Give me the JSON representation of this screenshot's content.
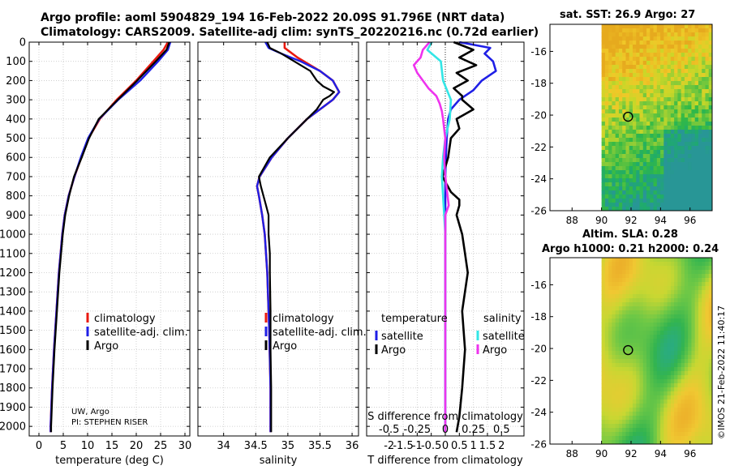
{
  "header": {
    "line1": "Argo profile: aoml 5904829_194 16-Feb-2022 20.09S 91.796E (NRT data)",
    "line2": "Climatology: CARS2009. Satellite-adj clim: synTS_20220216.nc (0.72d earlier)"
  },
  "map_sst": {
    "title": "sat. SST: 26.9 Argo: 27"
  },
  "map_sla": {
    "title_line1": "Altim. SLA: 0.28",
    "title_line2": "Argo h1000: 0.21 h2000: 0.24"
  },
  "side_stamp": "©IMOS 21-Feb-2022 11:40:17",
  "colors": {
    "climatology": "#e8190f",
    "satellite": "#1f1fe6",
    "argo": "#000000",
    "satellite_salinity": "#33e6e6",
    "argo_salinity": "#ee33ee"
  },
  "chart_data": [
    {
      "type": "line",
      "xlabel": "temperature (deg C)",
      "ylabel": "",
      "xlim": [
        -2,
        31
      ],
      "ylim": [
        2050,
        0
      ],
      "xticks": [
        0,
        5,
        10,
        15,
        20,
        25,
        30
      ],
      "yticks": [
        0,
        100,
        200,
        300,
        400,
        500,
        600,
        700,
        800,
        900,
        1000,
        1100,
        1200,
        1300,
        1400,
        1500,
        1600,
        1700,
        1800,
        1900,
        2000
      ],
      "grid": true,
      "legend": [
        "climatology",
        "satellite-adj. clim.",
        "Argo"
      ],
      "annotation": [
        "UW, Argo",
        "PI: STEPHEN RISER"
      ],
      "series": [
        {
          "name": "climatology",
          "depth": [
            0,
            40,
            100,
            200,
            300,
            400,
            500,
            600,
            700,
            800,
            900,
            1000,
            1200,
            1400,
            1600,
            1800,
            2000,
            2030
          ],
          "values": [
            26.5,
            25.6,
            23.5,
            20,
            16,
            12.5,
            10.2,
            8.7,
            7.3,
            6.1,
            5.3,
            4.8,
            4.1,
            3.6,
            3.1,
            2.7,
            2.4,
            2.4
          ]
        },
        {
          "name": "satellite-adj. clim.",
          "depth": [
            0,
            40,
            100,
            200,
            300,
            400,
            500,
            600,
            700,
            800,
            900,
            1000,
            1200,
            1400,
            1600,
            1800,
            2000,
            2030
          ],
          "values": [
            27,
            26.5,
            24.5,
            20.8,
            16.3,
            12.4,
            10.1,
            8.6,
            7.3,
            6.1,
            5.3,
            4.8,
            4.1,
            3.6,
            3.1,
            2.7,
            2.4,
            2.4
          ]
        },
        {
          "name": "Argo",
          "depth": [
            0,
            40,
            100,
            200,
            300,
            400,
            500,
            600,
            700,
            800,
            900,
            1000,
            1200,
            1400,
            1600,
            1800,
            2000,
            2030
          ],
          "values": [
            26.8,
            26.2,
            24,
            20.2,
            16.2,
            12.3,
            10.3,
            8.8,
            7.2,
            6.2,
            5.4,
            4.9,
            4.2,
            3.7,
            3.2,
            2.8,
            2.5,
            2.5
          ]
        }
      ]
    },
    {
      "type": "line",
      "xlabel": "salinity",
      "ylabel": "",
      "xlim": [
        33.6,
        36.1
      ],
      "ylim": [
        2050,
        0
      ],
      "xticks": [
        34,
        34.5,
        35,
        35.5,
        36
      ],
      "grid": true,
      "legend": [
        "climatology",
        "satellite-adj. clim.",
        "Argo"
      ],
      "series": [
        {
          "name": "climatology",
          "depth": [
            0,
            30,
            80,
            150,
            200,
            260,
            300,
            400,
            500,
            600,
            700,
            750,
            800,
            900,
            1000,
            1200,
            1500,
            1800,
            2000,
            2030
          ],
          "values": [
            34.95,
            34.95,
            35.15,
            35.5,
            35.7,
            35.8,
            35.7,
            35.3,
            35.0,
            34.75,
            34.56,
            34.52,
            34.55,
            34.6,
            34.64,
            34.68,
            34.71,
            34.73,
            34.73,
            34.73
          ]
        },
        {
          "name": "satellite-adj. clim.",
          "depth": [
            0,
            30,
            60,
            100,
            150,
            200,
            260,
            300,
            400,
            500,
            600,
            700,
            750,
            800,
            900,
            1000,
            1200,
            1500,
            1800,
            2000,
            2030
          ],
          "values": [
            34.65,
            34.7,
            34.9,
            35.2,
            35.5,
            35.7,
            35.8,
            35.7,
            35.3,
            35.0,
            34.75,
            34.56,
            34.52,
            34.55,
            34.6,
            34.64,
            34.68,
            34.71,
            34.73,
            34.73,
            34.73
          ]
        },
        {
          "name": "Argo",
          "depth": [
            0,
            30,
            60,
            100,
            150,
            200,
            230,
            260,
            280,
            300,
            350,
            400,
            500,
            600,
            700,
            750,
            800,
            850,
            900,
            1000,
            1100,
            1200,
            1400,
            1600,
            1800,
            2000,
            2030
          ],
          "values": [
            34.68,
            34.72,
            34.9,
            35.1,
            35.35,
            35.45,
            35.55,
            35.72,
            35.65,
            35.55,
            35.45,
            35.3,
            35.0,
            34.72,
            34.55,
            34.58,
            34.62,
            34.66,
            34.7,
            34.7,
            34.72,
            34.72,
            34.73,
            34.73,
            34.74,
            34.74,
            34.74
          ]
        }
      ]
    },
    {
      "type": "line",
      "xlabel": "T difference from climatology",
      "xlabel_top": "S difference from climatology",
      "ylabel": "",
      "xlim": [
        -2.8,
        2.8
      ],
      "ylim": [
        2050,
        0
      ],
      "xticks": [
        -2,
        -1.5,
        -1,
        -0.5,
        0,
        0.5,
        1,
        1.5,
        2
      ],
      "top_ticks": [
        -0.5,
        -0.25,
        0,
        0.25,
        0.5
      ],
      "grid": true,
      "legend_titles": [
        "temperature",
        "salinity"
      ],
      "legend": [
        "satellite",
        "Argo",
        "satellite",
        "Argo"
      ],
      "series": [
        {
          "name": "satellite",
          "depth": [
            0,
            30,
            60,
            100,
            150,
            200,
            250,
            300,
            350,
            400,
            500,
            600,
            700,
            800,
            900,
            1000,
            1200,
            1500,
            1800,
            2030
          ],
          "values": [
            0.5,
            1.6,
            1.4,
            1.7,
            1.8,
            1.3,
            1.0,
            0.5,
            0.2,
            0.1,
            0.05,
            0.02,
            0.0,
            0.0,
            0.0,
            0.0,
            0.0,
            0.0,
            0.0,
            0.0
          ]
        },
        {
          "name": "Argo",
          "depth": [
            0,
            40,
            80,
            120,
            160,
            200,
            240,
            280,
            300,
            350,
            400,
            450,
            500,
            600,
            700,
            780,
            820,
            850,
            900,
            1000,
            1100,
            1200,
            1400,
            1600,
            1800,
            1950,
            2030
          ],
          "values": [
            0.3,
            1.0,
            0.5,
            1.1,
            0.4,
            0.8,
            0.3,
            0.6,
            0.6,
            1.0,
            0.4,
            0.5,
            0.2,
            0.1,
            -0.1,
            0.2,
            0.5,
            0.5,
            0.4,
            0.6,
            0.7,
            0.8,
            0.6,
            0.7,
            0.6,
            0.5,
            0.4
          ]
        },
        {
          "name": "satellite",
          "depth": [
            0,
            40,
            100,
            200,
            300,
            400,
            500,
            600,
            700,
            800,
            900,
            1000,
            1200,
            1500,
            1800,
            2030
          ],
          "values": [
            -0.12,
            -0.16,
            -0.04,
            -0.02,
            0.05,
            0.04,
            0.0,
            -0.02,
            -0.03,
            -0.02,
            -0.01,
            0.0,
            0.0,
            0.0,
            0.0,
            0.0
          ]
        },
        {
          "name": "Argo",
          "depth": [
            0,
            40,
            80,
            120,
            160,
            200,
            240,
            280,
            320,
            360,
            400,
            500,
            600,
            700,
            800,
            850,
            900,
            1000,
            1200,
            1500,
            1800,
            2030
          ],
          "values": [
            -0.14,
            -0.2,
            -0.22,
            -0.28,
            -0.25,
            -0.2,
            -0.15,
            -0.08,
            -0.05,
            -0.03,
            -0.02,
            0.0,
            -0.01,
            0.0,
            0.02,
            0.03,
            0.0,
            0.0,
            0.0,
            0.0,
            0.0,
            0.0
          ]
        }
      ]
    },
    {
      "type": "heatmap",
      "title": "sat. SST: 26.9 Argo: 27",
      "xlim": [
        86.5,
        97.5
      ],
      "ylim": [
        -26,
        -14.3
      ],
      "xticks": [
        88,
        90,
        92,
        94,
        96
      ],
      "yticks": [
        -16,
        -18,
        -20,
        -22,
        -24,
        -26
      ],
      "marker": [
        91.8,
        -20.1
      ]
    },
    {
      "type": "heatmap",
      "title": "Altim. SLA: 0.28",
      "xlim": [
        86.5,
        97.5
      ],
      "ylim": [
        -26,
        -14.3
      ],
      "xticks": [
        88,
        90,
        92,
        94,
        96
      ],
      "yticks": [
        -16,
        -18,
        -20,
        -22,
        -24,
        -26
      ],
      "marker": [
        91.8,
        -20.1
      ]
    }
  ]
}
